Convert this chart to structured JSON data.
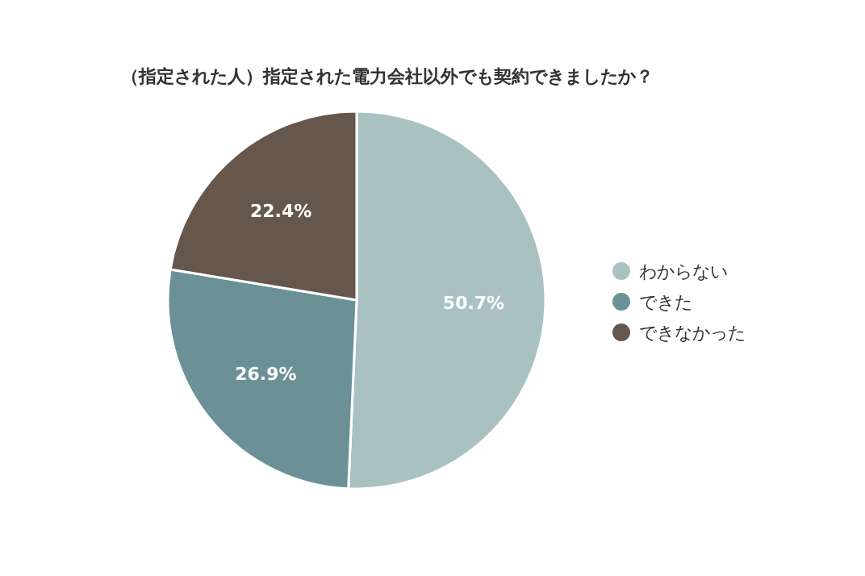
{
  "chart_data": {
    "type": "pie",
    "title": "（指定された人）指定された電力会社以外でも契約できましたか？",
    "categories": [
      "わからない",
      "できた",
      "できなかった"
    ],
    "values": [
      50.7,
      26.9,
      22.4
    ],
    "colors": [
      "#a9c2c1",
      "#6b9196",
      "#65574c"
    ],
    "value_labels": [
      "50.7%",
      "26.9%",
      "22.4%"
    ],
    "legend": "right"
  }
}
